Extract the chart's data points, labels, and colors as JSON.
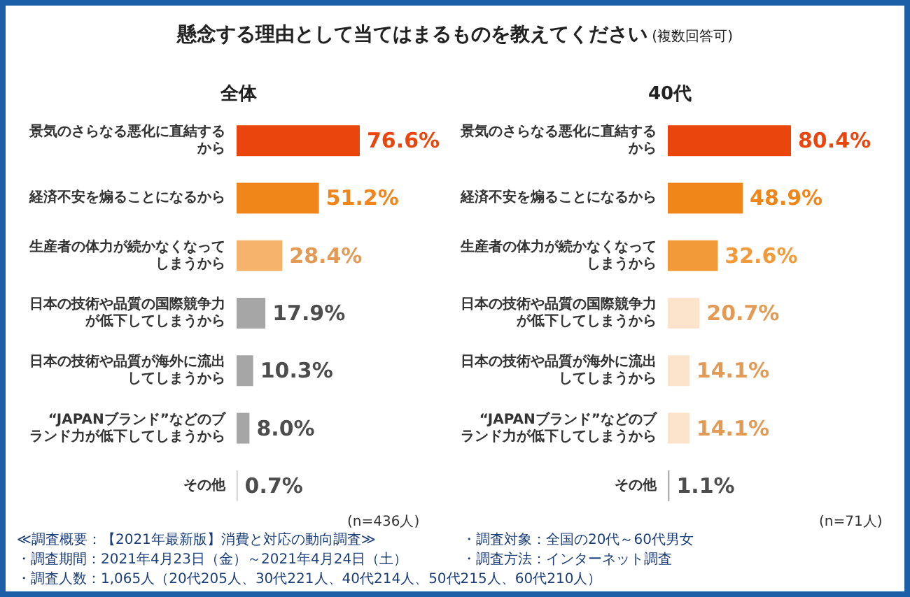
{
  "chart_data": [
    {
      "type": "other",
      "title": "懸念する理由として当てはまるものを教えてください",
      "subtitle": "(複数回答可)"
    },
    {
      "type": "bar",
      "orientation": "horizontal",
      "title": "全体",
      "categories": [
        "景気のさらなる悪化に直結するから",
        "経済不安を煽ることになるから",
        "生産者の体力が続かなくなってしまうから",
        "日本の技術や品質の国際競争力が低下してしまうから",
        "日本の技術や品質が海外に流出してしまうから",
        "“JAPANブランド”などのブランド力が低下してしまうから",
        "その他"
      ],
      "values": [
        76.6,
        51.2,
        28.4,
        17.9,
        10.3,
        8.0,
        0.7
      ],
      "value_labels": [
        "76.6%",
        "51.2%",
        "28.4%",
        "17.9%",
        "10.3%",
        "8.0%",
        "0.7%"
      ],
      "colors": [
        "#e9450d",
        "#f08519",
        "#f6b36b",
        "#a6a6a6",
        "#a6a6a6",
        "#a6a6a6",
        "#c8c8c8"
      ],
      "annotations": [
        "(n=436人)",
        "≪調査概要：【2021年最新版】消費と対応の動向調査≫",
        "・調査期間：2021年4月23日（金）～2021年4月24日（土）",
        "・調査人数：1,065人（20代205人、30代221人、40代214人、50代215人、60代210人）"
      ]
    },
    {
      "type": "bar",
      "orientation": "horizontal",
      "title": "40代",
      "categories": [
        "景気のさらなる悪化に直結するから",
        "経済不安を煽ることになるから",
        "生産者の体力が続かなくなってしまうから",
        "日本の技術や品質の国際競争力が低下してしまうから",
        "日本の技術や品質が海外に流出してしまうから",
        "“JAPANブランド”などのブランド力が低下してしまうから",
        "その他"
      ],
      "values": [
        80.4,
        48.9,
        32.6,
        20.7,
        14.1,
        14.1,
        1.1
      ],
      "value_labels": [
        "80.4%",
        "48.9%",
        "32.6%",
        "20.7%",
        "14.1%",
        "14.1%",
        "1.1%"
      ],
      "colors": [
        "#e9450d",
        "#f08519",
        "#f29a3a",
        "#fbe3cc",
        "#fbe3cc",
        "#fbe3cc",
        "#b0b0b0"
      ],
      "annotations": [
        "(n=71人)",
        "・調査対象：全国の20代～60代男女",
        "・調査方法：インターネット調査"
      ]
    }
  ]
}
